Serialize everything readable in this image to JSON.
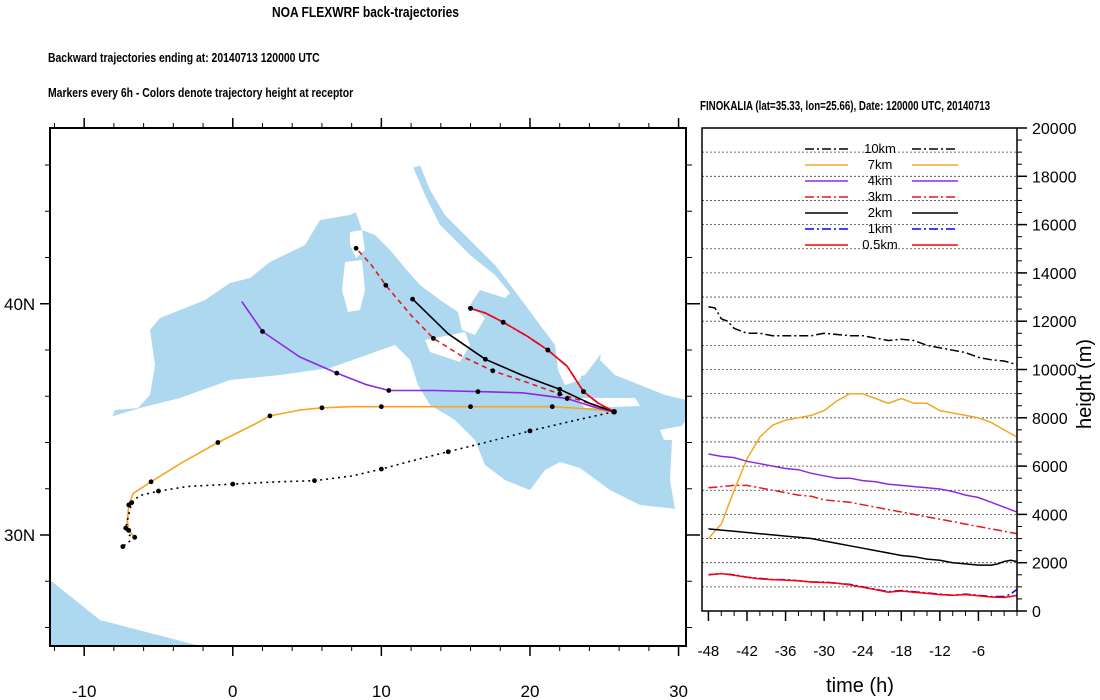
{
  "header": {
    "title": "NOA FLEXWRF back-trajectories",
    "subtitle1": "Backward trajectories ending at: 20140713  120000 UTC",
    "subtitle2": "Markers every 6h - Colors denote trajectory height at receptor",
    "right_title": "FINOKALIA (lat=35.33,  lon=25.66), Date: 120000 UTC, 20140713"
  },
  "colors": {
    "sea": "#add8f0",
    "land": "#ffffff",
    "10km": "#000000",
    "7km": "#f5a623",
    "4km": "#8a2be2",
    "3km": "#e31a1c",
    "2km": "#000000",
    "1km": "#0000ff",
    "0.5km": "#ff0000"
  },
  "chart_data": [
    {
      "type": "line",
      "name": "map",
      "x_ticks": [
        "-10",
        "0",
        "10",
        "20",
        "30"
      ],
      "y_ticks": [
        "30N",
        "40N"
      ],
      "xlim": [
        -12.3,
        30.5
      ],
      "ylim": [
        25.2,
        47.6
      ],
      "receptor": {
        "lon": 25.66,
        "lat": 35.33
      },
      "series": [
        {
          "name": "7km",
          "color": "#f5a623",
          "style": "solid",
          "lon": [
            25.66,
            24.0,
            21.5,
            19.0,
            16.0,
            13.0,
            10.0,
            8.0,
            6.0,
            4.5,
            2.5,
            1.5,
            -1.0,
            -3.5,
            -5.5,
            -6.7,
            -7.0,
            -7.1,
            -7.0,
            -6.6
          ],
          "lat": [
            35.33,
            35.45,
            35.55,
            35.55,
            35.55,
            35.55,
            35.55,
            35.55,
            35.5,
            35.4,
            35.15,
            34.8,
            34.0,
            33.1,
            32.3,
            31.8,
            31.3,
            30.6,
            30.2,
            29.9
          ]
        },
        {
          "name": "4km",
          "color": "#8a2be2",
          "style": "solid",
          "lon": [
            25.66,
            24.5,
            22.5,
            19.5,
            16.5,
            13.5,
            10.5,
            9.0,
            7.0,
            4.5,
            2.0,
            0.6
          ],
          "lat": [
            35.33,
            35.5,
            35.9,
            36.15,
            36.2,
            36.25,
            36.25,
            36.5,
            37.0,
            37.7,
            38.8,
            40.1
          ]
        },
        {
          "name": "3km",
          "color": "#e31a1c",
          "style": "dash",
          "lon": [
            25.66,
            24.0,
            22.0,
            19.8,
            17.5,
            15.5,
            13.5,
            12.0,
            10.3,
            9.3,
            8.3
          ],
          "lat": [
            35.33,
            35.7,
            36.1,
            36.6,
            37.1,
            37.7,
            38.5,
            39.5,
            40.8,
            41.7,
            42.4
          ]
        },
        {
          "name": "2km",
          "color": "#000000",
          "style": "solid",
          "lon": [
            25.66,
            24.0,
            22.0,
            19.5,
            17.0,
            14.5,
            12.1
          ],
          "lat": [
            35.33,
            35.7,
            36.3,
            36.9,
            37.6,
            38.7,
            40.2
          ]
        },
        {
          "name": "1km",
          "color": "#0000ff",
          "style": "dashdot",
          "lon": [
            25.66,
            24.6,
            23.6,
            22.5,
            21.2,
            19.8,
            18.2,
            17.0,
            16.0
          ],
          "lat": [
            35.33,
            35.7,
            36.2,
            37.3,
            38.0,
            38.6,
            39.2,
            39.6,
            39.8
          ]
        },
        {
          "name": "0.5km",
          "color": "#ff0000",
          "style": "solid",
          "lon": [
            25.66,
            24.6,
            23.6,
            22.5,
            21.2,
            19.8,
            18.2,
            17.0,
            16.0
          ],
          "lat": [
            35.33,
            35.7,
            36.2,
            37.3,
            38.0,
            38.6,
            39.2,
            39.6,
            39.8
          ]
        },
        {
          "name": "10km",
          "color": "#000000",
          "style": "dot",
          "lon": [
            25.66,
            23.0,
            20.0,
            17.0,
            14.5,
            12.0,
            10.0,
            8.0,
            5.5,
            3.0,
            0.0,
            -3.0,
            -5.0,
            -6.3,
            -6.8,
            -7.0,
            -7.2,
            -7.0,
            -6.6,
            -7.0,
            -7.4
          ],
          "lat": [
            35.33,
            34.95,
            34.5,
            34.0,
            33.6,
            33.2,
            32.85,
            32.55,
            32.35,
            32.3,
            32.2,
            32.1,
            31.9,
            31.7,
            31.4,
            30.9,
            30.3,
            30.0,
            29.9,
            29.7,
            29.5
          ]
        }
      ],
      "markers_every": "6h"
    },
    {
      "type": "line",
      "name": "height",
      "xlabel": "time (h)",
      "ylabel": "height (m)",
      "xlim": [
        -49,
        0
      ],
      "ylim": [
        0,
        20000
      ],
      "x_ticks": [
        -48,
        -42,
        -36,
        -30,
        -24,
        -18,
        -12,
        -6
      ],
      "y_ticks": [
        0,
        2000,
        4000,
        6000,
        8000,
        10000,
        12000,
        14000,
        16000,
        18000,
        20000
      ],
      "legend": [
        "10km",
        "7km",
        "4km",
        "3km",
        "2km",
        "1km",
        "0.5km"
      ],
      "legend_position": "top",
      "series": [
        {
          "name": "10km",
          "color": "#000000",
          "style": "dashdot",
          "x": [
            -48,
            -47,
            -46,
            -45,
            -44,
            -42,
            -40,
            -38,
            -36,
            -34,
            -32,
            -30,
            -28,
            -26,
            -24,
            -22,
            -20,
            -18,
            -16,
            -14,
            -12,
            -10,
            -8,
            -6,
            -4,
            -2,
            0
          ],
          "y": [
            12600,
            12550,
            12100,
            12000,
            11700,
            11500,
            11500,
            11400,
            11400,
            11400,
            11400,
            11500,
            11450,
            11400,
            11400,
            11300,
            11200,
            11250,
            11200,
            11000,
            10900,
            10800,
            10700,
            10500,
            10400,
            10350,
            10200
          ]
        },
        {
          "name": "7km",
          "color": "#f5a623",
          "style": "solid",
          "x": [
            -48,
            -46,
            -44,
            -42,
            -40,
            -38,
            -36,
            -34,
            -32,
            -30,
            -28,
            -26,
            -24,
            -22,
            -20,
            -18,
            -16,
            -14,
            -12,
            -10,
            -8,
            -6,
            -4,
            -2,
            0
          ],
          "y": [
            3000,
            3600,
            5000,
            6300,
            7200,
            7700,
            7900,
            8000,
            8100,
            8300,
            8700,
            9000,
            9000,
            8800,
            8600,
            8800,
            8600,
            8600,
            8300,
            8200,
            8100,
            8000,
            7800,
            7500,
            7200
          ]
        },
        {
          "name": "4km",
          "color": "#8a2be2",
          "style": "solid",
          "x": [
            -48,
            -46,
            -44,
            -42,
            -40,
            -38,
            -36,
            -34,
            -32,
            -30,
            -28,
            -26,
            -24,
            -22,
            -20,
            -18,
            -16,
            -14,
            -12,
            -10,
            -8,
            -6,
            -4,
            -2,
            0
          ],
          "y": [
            6500,
            6400,
            6350,
            6200,
            6100,
            6000,
            5900,
            5850,
            5700,
            5600,
            5500,
            5500,
            5400,
            5350,
            5250,
            5200,
            5150,
            5100,
            5050,
            4950,
            4800,
            4700,
            4500,
            4300,
            4100
          ]
        },
        {
          "name": "3km",
          "color": "#e31a1c",
          "style": "dashdot",
          "x": [
            -48,
            -46,
            -44,
            -42,
            -40,
            -38,
            -36,
            -34,
            -32,
            -30,
            -28,
            -26,
            -24,
            -22,
            -20,
            -18,
            -16,
            -14,
            -12,
            -10,
            -8,
            -6,
            -4,
            -2,
            0
          ],
          "y": [
            5100,
            5150,
            5200,
            5200,
            5100,
            5000,
            4900,
            4800,
            4750,
            4600,
            4550,
            4500,
            4400,
            4300,
            4200,
            4100,
            4000,
            3900,
            3800,
            3700,
            3600,
            3500,
            3400,
            3300,
            3200
          ]
        },
        {
          "name": "2km",
          "color": "#000000",
          "style": "solid",
          "x": [
            -48,
            -46,
            -44,
            -42,
            -40,
            -38,
            -36,
            -34,
            -32,
            -30,
            -28,
            -26,
            -24,
            -22,
            -20,
            -18,
            -16,
            -14,
            -12,
            -10,
            -8,
            -6,
            -4,
            -3,
            -2,
            -1,
            0
          ],
          "y": [
            3400,
            3350,
            3300,
            3250,
            3200,
            3150,
            3100,
            3050,
            3000,
            2900,
            2800,
            2700,
            2600,
            2500,
            2400,
            2300,
            2250,
            2150,
            2100,
            2000,
            1950,
            1900,
            1900,
            1950,
            2050,
            2100,
            2050
          ]
        },
        {
          "name": "1km",
          "color": "#0000ff",
          "style": "dashdot",
          "x": [
            -48,
            -46,
            -44,
            -42,
            -40,
            -38,
            -36,
            -34,
            -32,
            -30,
            -28,
            -26,
            -24,
            -22,
            -20,
            -18,
            -16,
            -14,
            -12,
            -10,
            -8,
            -6,
            -4,
            -2,
            -1,
            0
          ],
          "y": [
            1500,
            1550,
            1500,
            1400,
            1350,
            1300,
            1300,
            1250,
            1200,
            1200,
            1150,
            1100,
            1000,
            900,
            800,
            850,
            800,
            750,
            700,
            650,
            700,
            650,
            600,
            600,
            700,
            900
          ]
        },
        {
          "name": "0.5km",
          "color": "#ff0000",
          "style": "solid",
          "x": [
            -48,
            -46,
            -44,
            -42,
            -40,
            -38,
            -36,
            -34,
            -32,
            -30,
            -28,
            -26,
            -24,
            -22,
            -20,
            -18,
            -16,
            -14,
            -12,
            -10,
            -8,
            -6,
            -4,
            -2,
            -1,
            0
          ],
          "y": [
            1500,
            1550,
            1480,
            1400,
            1330,
            1300,
            1280,
            1250,
            1200,
            1180,
            1150,
            1080,
            980,
            880,
            780,
            830,
            780,
            730,
            680,
            650,
            680,
            630,
            580,
            560,
            600,
            650
          ]
        }
      ]
    }
  ]
}
